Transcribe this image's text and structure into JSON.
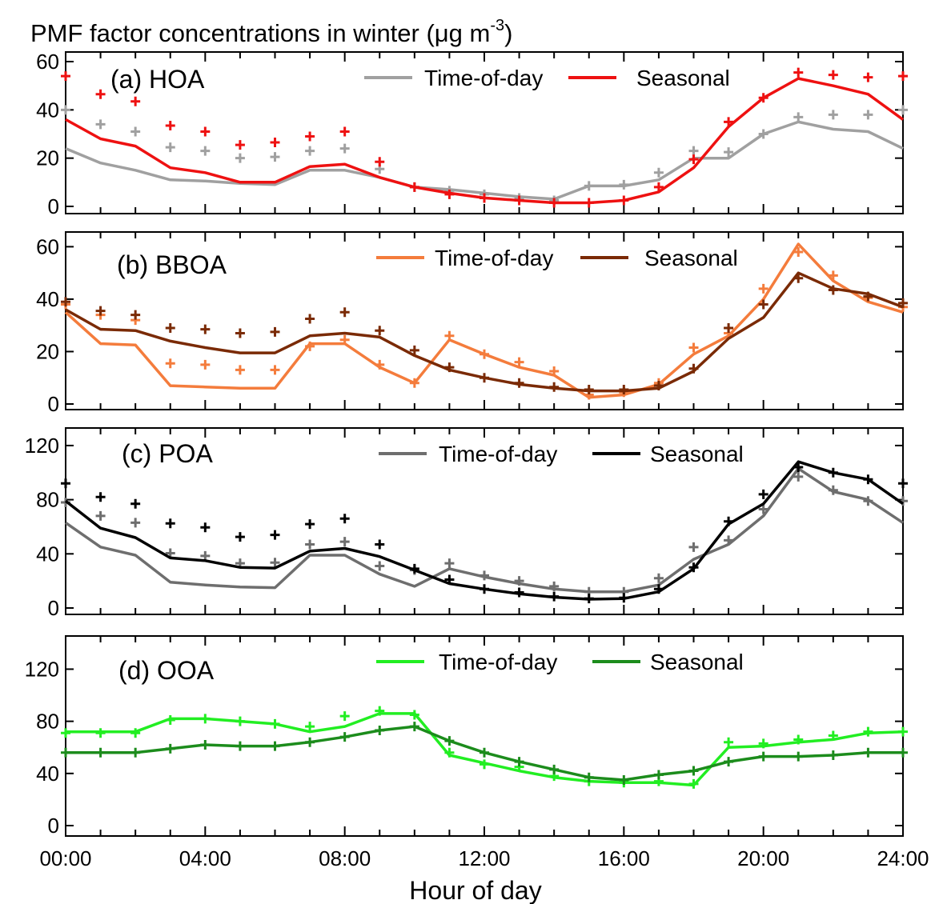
{
  "figure": {
    "title": "PMF factor concentrations in winter (μg m",
    "title_close": ")",
    "title_superscript": "-3",
    "xlabel": "Hour of day"
  },
  "chart_data": [
    {
      "type": "line",
      "label": "(a) HOA",
      "xlabel": "Hour of day",
      "ylabel": "",
      "xlim": [
        0,
        24
      ],
      "ylim": [
        0,
        60
      ],
      "yticks": [
        0,
        20,
        40,
        60
      ],
      "xtick_labels": [
        "00:00",
        "04:00",
        "08:00",
        "12:00",
        "16:00",
        "20:00",
        "24:00"
      ],
      "legend": "top-center",
      "series": [
        {
          "name": "Time-of-day",
          "color": "#a0a0a0",
          "values": [
            24,
            18,
            15,
            11,
            10.5,
            9.5,
            9,
            15,
            15,
            12,
            8,
            7,
            5.5,
            4,
            3,
            8.5,
            8.5,
            11,
            20,
            20,
            30,
            35,
            32,
            31,
            24
          ],
          "markers": [
            40,
            34,
            31,
            24.5,
            23,
            20,
            20.5,
            23,
            24,
            15.5,
            8,
            6.5,
            5,
            3.5,
            2.5,
            8.5,
            9,
            14,
            23,
            22.5,
            30,
            37,
            38,
            38,
            40
          ]
        },
        {
          "name": "Seasonal",
          "color": "#ee1111",
          "values": [
            36,
            28,
            25,
            16,
            14,
            10,
            10,
            16.5,
            17.5,
            12,
            8,
            5.5,
            3.5,
            2.5,
            1.5,
            1.5,
            2.5,
            6,
            16,
            33,
            45,
            53,
            50,
            46.5,
            36
          ],
          "markers": [
            54,
            46.5,
            43.5,
            33.5,
            31,
            25.5,
            26.5,
            29,
            31,
            18.5,
            8,
            5,
            3.5,
            2.5,
            1.5,
            1.5,
            2.5,
            8,
            19.5,
            35,
            45,
            55.5,
            54.5,
            53.5,
            54
          ]
        }
      ]
    },
    {
      "type": "line",
      "label": "(b) BBOA",
      "xlabel": "Hour of day",
      "ylabel": "",
      "xlim": [
        0,
        24
      ],
      "ylim": [
        0,
        65
      ],
      "yticks": [
        0,
        20,
        40,
        60
      ],
      "xtick_labels": [
        "00:00",
        "04:00",
        "08:00",
        "12:00",
        "16:00",
        "20:00",
        "24:00"
      ],
      "legend": "top-center",
      "series": [
        {
          "name": "Time-of-day",
          "color": "#f47c3c",
          "values": [
            35,
            23,
            22.5,
            7,
            6.5,
            6,
            6,
            23,
            23,
            14,
            8,
            24.5,
            19,
            14,
            11,
            2.5,
            3.5,
            7.5,
            19,
            26,
            40,
            61,
            47,
            39,
            35
          ],
          "markers": [
            38,
            34,
            32,
            15.5,
            15,
            13,
            13,
            22,
            24.5,
            15,
            8,
            26,
            19,
            16,
            12.5,
            3.5,
            4.5,
            8,
            21.5,
            27,
            44,
            58,
            49,
            40.5,
            37
          ]
        },
        {
          "name": "Seasonal",
          "color": "#7a2a05",
          "values": [
            36,
            28.5,
            28,
            24,
            21.5,
            19.5,
            19.5,
            26,
            27,
            25.5,
            18.5,
            13,
            10,
            7.5,
            6,
            5,
            5,
            6,
            12.5,
            25,
            33,
            50,
            44,
            42,
            37
          ],
          "markers": [
            39,
            35.5,
            34,
            29,
            28.5,
            27,
            27.5,
            32.5,
            35,
            28,
            20.5,
            14,
            10,
            8,
            6.5,
            5.5,
            5.5,
            7,
            13.5,
            29,
            38,
            48,
            43.5,
            41,
            38.5
          ]
        }
      ]
    },
    {
      "type": "line",
      "label": "(c) POA",
      "xlabel": "Hour of day",
      "ylabel": "",
      "xlim": [
        0,
        24
      ],
      "ylim": [
        0,
        130
      ],
      "yticks": [
        0,
        40,
        80,
        120
      ],
      "xtick_labels": [
        "00:00",
        "04:00",
        "08:00",
        "12:00",
        "16:00",
        "20:00",
        "24:00"
      ],
      "legend": "top-center",
      "series": [
        {
          "name": "Time-of-day",
          "color": "#6e6e6e",
          "values": [
            63,
            45,
            39,
            19,
            17,
            15.5,
            15,
            39,
            39,
            25,
            16,
            29,
            23,
            18,
            14,
            12,
            12,
            17,
            36,
            47,
            68,
            103,
            86,
            80,
            63
          ],
          "markers": [
            78,
            68,
            63,
            40.5,
            38.5,
            33,
            33.5,
            47,
            49,
            31,
            28,
            33,
            24,
            20,
            16,
            12,
            12,
            22,
            45,
            50,
            73,
            97,
            87,
            79,
            79
          ]
        },
        {
          "name": "Seasonal",
          "color": "#000000",
          "values": [
            79,
            59,
            52,
            37,
            35,
            30,
            29.5,
            42,
            44,
            38,
            28,
            18,
            14,
            10.5,
            8,
            6.5,
            7,
            12,
            29,
            62,
            77,
            108,
            100,
            95,
            77
          ],
          "markers": [
            92,
            82,
            77,
            62.5,
            59.5,
            52.5,
            54,
            62,
            66,
            47,
            29,
            21,
            14,
            11.5,
            8.5,
            7,
            7.5,
            14,
            30,
            64,
            84,
            104,
            100,
            95,
            92
          ]
        }
      ]
    },
    {
      "type": "line",
      "label": "(d) OOA",
      "xlabel": "Hour of day",
      "ylabel": "",
      "xlim": [
        0,
        24
      ],
      "ylim": [
        0,
        135
      ],
      "yticks": [
        0,
        40,
        80,
        120
      ],
      "xtick_labels": [
        "00:00",
        "04:00",
        "08:00",
        "12:00",
        "16:00",
        "20:00",
        "24:00"
      ],
      "legend": "top-center",
      "series": [
        {
          "name": "Time-of-day",
          "color": "#22ee22",
          "values": [
            72,
            72,
            72,
            82,
            82,
            80,
            78,
            72,
            76,
            86,
            86,
            54,
            48,
            42,
            37,
            34,
            33,
            33,
            31,
            60,
            61,
            64,
            66,
            71,
            72
          ],
          "markers": [
            71,
            71,
            71,
            81,
            82,
            80,
            78,
            76,
            84,
            88,
            85,
            56,
            47,
            45,
            38,
            34,
            33,
            34,
            32,
            64,
            63,
            66,
            69,
            72,
            72
          ]
        },
        {
          "name": "Seasonal",
          "color": "#1c8c1c",
          "values": [
            56,
            56,
            56,
            59,
            62,
            61,
            61,
            64,
            68,
            73,
            76,
            65,
            56,
            49,
            43,
            37,
            35,
            39,
            42,
            49,
            53,
            53,
            54,
            56,
            56
          ]
        }
      ]
    }
  ]
}
